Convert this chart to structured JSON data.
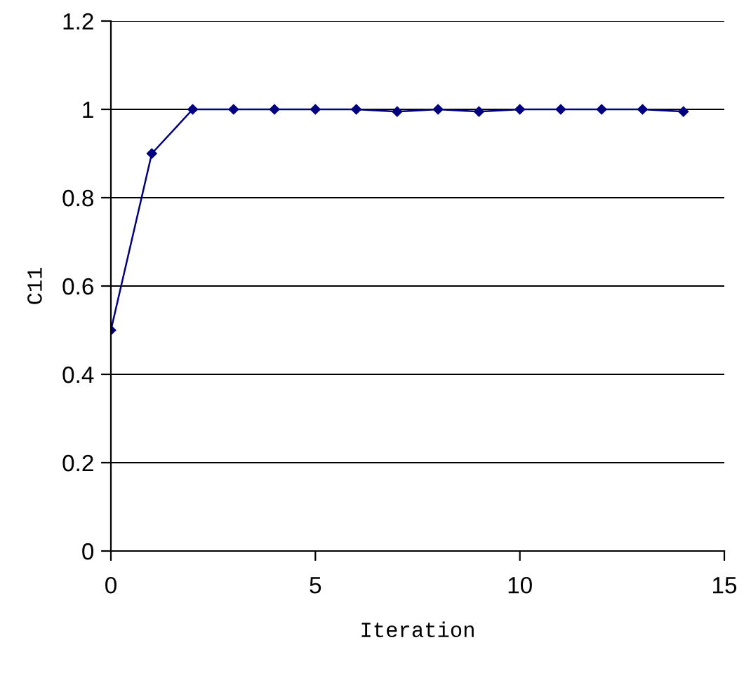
{
  "chart_data": {
    "type": "line",
    "xlabel": "Iteration",
    "ylabel": "C11",
    "x": [
      0,
      1,
      2,
      3,
      4,
      5,
      6,
      7,
      8,
      9,
      10,
      11,
      12,
      13,
      14
    ],
    "series": [
      {
        "color": "#000080",
        "values": [
          0.5,
          0.9,
          1,
          1,
          1,
          1,
          1,
          0.995,
          1,
          0.995,
          1,
          1,
          1,
          1,
          0.995
        ]
      }
    ],
    "xlim": [
      0,
      15
    ],
    "xticks": [
      0,
      5,
      10,
      15
    ],
    "ylim": [
      0,
      1.2
    ],
    "yticks": [
      0,
      0.2,
      0.4,
      0.6,
      0.8,
      1,
      1.2
    ],
    "grid": "y",
    "marker": "diamond",
    "line_style": "solid"
  }
}
